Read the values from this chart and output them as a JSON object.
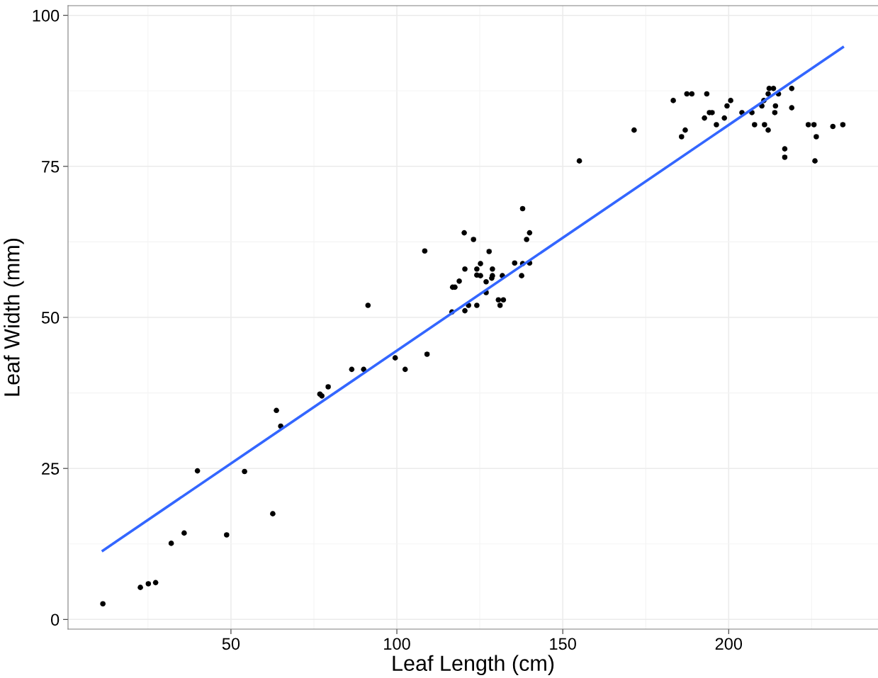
{
  "chart_data": {
    "type": "scatter",
    "xlabel": "Leaf Length (cm)",
    "ylabel": "Leaf Width (mm)",
    "xlim": [
      0.9,
      245
    ],
    "ylim": [
      -1.6,
      101.6
    ],
    "xticks": [
      50,
      100,
      150,
      200
    ],
    "yticks": [
      0,
      25,
      50,
      75,
      100
    ],
    "grid": true,
    "series": [
      {
        "marker": "circle",
        "color": "#000000",
        "x": [
          11.4,
          22.7,
          25.1,
          27.3,
          32.0,
          35.9,
          39.9,
          48.7,
          54.1,
          62.6,
          63.7,
          65.0,
          76.8,
          77.4,
          79.3,
          86.4,
          90.0,
          91.3,
          99.5,
          102.5,
          108.4,
          109.1,
          116.6,
          116.8,
          117.5,
          118.8,
          120.3,
          120.5,
          120.5,
          121.6,
          123.1,
          124.1,
          124.1,
          124.1,
          125.2,
          125.2,
          126.9,
          126.9,
          127.8,
          128.8,
          128.8,
          128.6,
          130.6,
          131.1,
          132.1,
          131.8,
          135.5,
          137.6,
          137.9,
          137.9,
          139.1,
          140.0,
          140.0,
          155.0,
          171.5,
          183.3,
          185.8,
          186.9,
          187.4,
          188.9,
          192.7,
          193.4,
          194.2,
          195.0,
          196.3,
          198.7,
          199.5,
          200.6,
          204.0,
          207.0,
          207.8,
          210.0,
          210.8,
          210.6,
          211.9,
          211.9,
          212.2,
          213.5,
          214.1,
          213.9,
          215.0,
          216.9,
          216.9,
          219.0,
          219.0,
          224.0,
          225.7,
          226.0,
          226.4,
          231.4,
          234.4
        ],
        "values": [
          2.6,
          5.3,
          5.9,
          6.1,
          12.6,
          14.3,
          24.6,
          14.0,
          24.5,
          17.5,
          34.6,
          32.0,
          37.3,
          37.0,
          38.5,
          41.4,
          41.4,
          52.0,
          43.3,
          41.4,
          61.0,
          43.9,
          50.9,
          55.0,
          55.0,
          56.0,
          64.0,
          58.0,
          51.1,
          52.0,
          62.9,
          58.0,
          57.0,
          52.0,
          56.9,
          58.9,
          54.1,
          55.9,
          60.9,
          58.0,
          56.9,
          56.5,
          52.9,
          52.0,
          52.9,
          56.9,
          59.0,
          56.9,
          68.0,
          58.9,
          62.9,
          64.0,
          59.0,
          75.9,
          81.0,
          85.9,
          79.9,
          81.0,
          87.0,
          87.0,
          83.0,
          87.0,
          83.9,
          83.9,
          81.9,
          83.0,
          85.0,
          85.9,
          83.9,
          83.9,
          81.9,
          85.0,
          81.9,
          85.9,
          87.0,
          81.0,
          87.9,
          87.9,
          85.0,
          83.9,
          87.0,
          77.9,
          76.5,
          87.9,
          84.7,
          81.9,
          81.9,
          75.9,
          79.9,
          81.6,
          81.9
        ]
      },
      {
        "type": "line",
        "color": "#3366ff",
        "line_style": "solid",
        "x": [
          11.4,
          234.4
        ],
        "values": [
          11.4,
          94.7
        ]
      }
    ]
  }
}
